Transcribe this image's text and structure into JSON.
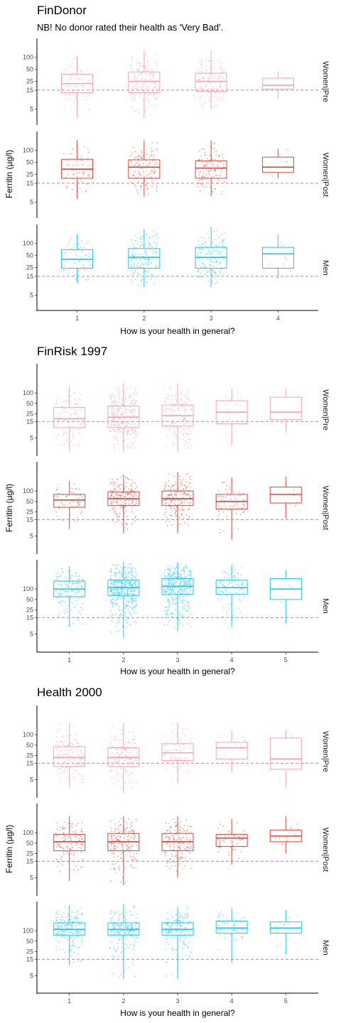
{
  "chart_data": [
    {
      "type": "box",
      "title": "FinDonor",
      "subtitle": "NB! No donor rated their health as 'Very Bad'.",
      "xlabel": "How is your health in general?",
      "ylabel": "Ferritin (µg/l)",
      "y_scale": "log",
      "y_ticks": [
        5,
        15,
        25,
        50,
        100
      ],
      "threshold": 15,
      "categories": [
        "1",
        "2",
        "3",
        "4"
      ],
      "panels": [
        {
          "label": "Women|Pre",
          "color": "#f7a0b8",
          "ylim": [
            2,
            300
          ],
          "boxes": [
            {
              "x": "1",
              "q1": 13,
              "median": 22,
              "q3": 38,
              "wlo": 3,
              "whi": 110,
              "n": 60
            },
            {
              "x": "2",
              "q1": 13,
              "median": 25,
              "q3": 43,
              "wlo": 3,
              "whi": 150,
              "n": 170
            },
            {
              "x": "3",
              "q1": 14,
              "median": 25,
              "q3": 40,
              "wlo": 5,
              "whi": 150,
              "n": 130
            },
            {
              "x": "4",
              "q1": 16,
              "median": 20,
              "q3": 30,
              "wlo": 9,
              "whi": 45,
              "n": 6
            }
          ]
        },
        {
          "label": "Women|Post",
          "color": "#d9453a",
          "ylim": [
            2,
            300
          ],
          "boxes": [
            {
              "x": "1",
              "q1": 20,
              "median": 34,
              "q3": 60,
              "wlo": 6,
              "whi": 180,
              "n": 55
            },
            {
              "x": "2",
              "q1": 20,
              "median": 38,
              "q3": 58,
              "wlo": 7,
              "whi": 180,
              "n": 120
            },
            {
              "x": "3",
              "q1": 20,
              "median": 36,
              "q3": 55,
              "wlo": 7,
              "whi": 180,
              "n": 110
            },
            {
              "x": "4",
              "q1": 28,
              "median": 38,
              "q3": 68,
              "wlo": 20,
              "whi": 110,
              "n": 6
            }
          ]
        },
        {
          "label": "Men",
          "color": "#22c3f0",
          "ylim": [
            2,
            300
          ],
          "boxes": [
            {
              "x": "1",
              "q1": 24,
              "median": 40,
              "q3": 70,
              "wlo": 10,
              "whi": 170,
              "n": 60
            },
            {
              "x": "2",
              "q1": 24,
              "median": 45,
              "q3": 75,
              "wlo": 8,
              "whi": 230,
              "n": 150
            },
            {
              "x": "3",
              "q1": 24,
              "median": 45,
              "q3": 80,
              "wlo": 8,
              "whi": 260,
              "n": 130
            },
            {
              "x": "4",
              "q1": 24,
              "median": 55,
              "q3": 80,
              "wlo": 13,
              "whi": 170,
              "n": 8
            }
          ]
        }
      ]
    },
    {
      "type": "box",
      "title": "FinRisk 1997",
      "xlabel": "How is your health in general?",
      "ylabel": "Ferritin (µg/l)",
      "y_scale": "log",
      "y_ticks": [
        5,
        15,
        25,
        50,
        100
      ],
      "threshold": 15,
      "categories": [
        "1",
        "2",
        "3",
        "4",
        "5"
      ],
      "panels": [
        {
          "label": "Women|Pre",
          "color": "#f7a0b8",
          "ylim": [
            1.5,
            700
          ],
          "boxes": [
            {
              "x": "1",
              "q1": 10,
              "median": 18,
              "q3": 38,
              "wlo": 2,
              "whi": 160,
              "n": 110
            },
            {
              "x": "2",
              "q1": 10,
              "median": 20,
              "q3": 42,
              "wlo": 2,
              "whi": 190,
              "n": 330
            },
            {
              "x": "3",
              "q1": 11,
              "median": 22,
              "q3": 45,
              "wlo": 2,
              "whi": 190,
              "n": 170
            },
            {
              "x": "4",
              "q1": 13,
              "median": 28,
              "q3": 60,
              "wlo": 3,
              "whi": 130,
              "n": 30
            },
            {
              "x": "5",
              "q1": 17,
              "median": 28,
              "q3": 75,
              "wlo": 7,
              "whi": 130,
              "n": 4
            }
          ]
        },
        {
          "label": "Women|Post",
          "color": "#d9453a",
          "ylim": [
            1.5,
            700
          ],
          "boxes": [
            {
              "x": "1",
              "q1": 34,
              "median": 55,
              "q3": 80,
              "wlo": 8,
              "whi": 200,
              "n": 50
            },
            {
              "x": "2",
              "q1": 38,
              "median": 60,
              "q3": 95,
              "wlo": 6,
              "whi": 300,
              "n": 190
            },
            {
              "x": "3",
              "q1": 38,
              "median": 60,
              "q3": 100,
              "wlo": 6,
              "whi": 350,
              "n": 200
            },
            {
              "x": "4",
              "q1": 30,
              "median": 50,
              "q3": 80,
              "wlo": 4,
              "whi": 250,
              "n": 60
            },
            {
              "x": "5",
              "q1": 45,
              "median": 80,
              "q3": 130,
              "wlo": 16,
              "whi": 260,
              "n": 6
            }
          ]
        },
        {
          "label": "Men",
          "color": "#22c3f0",
          "ylim": [
            1.5,
            700
          ],
          "boxes": [
            {
              "x": "1",
              "q1": 60,
              "median": 100,
              "q3": 170,
              "wlo": 8,
              "whi": 450,
              "n": 150
            },
            {
              "x": "2",
              "q1": 65,
              "median": 110,
              "q3": 180,
              "wlo": 4,
              "whi": 600,
              "n": 450
            },
            {
              "x": "3",
              "q1": 70,
              "median": 120,
              "q3": 200,
              "wlo": 6,
              "whi": 600,
              "n": 400
            },
            {
              "x": "4",
              "q1": 70,
              "median": 110,
              "q3": 180,
              "wlo": 8,
              "whi": 500,
              "n": 100
            },
            {
              "x": "5",
              "q1": 50,
              "median": 100,
              "q3": 200,
              "wlo": 10,
              "whi": 350,
              "n": 8
            }
          ]
        }
      ]
    },
    {
      "type": "box",
      "title": "Health 2000",
      "xlabel": "How is your health in general?",
      "ylabel": "Ferritin (µg/l)",
      "y_scale": "log",
      "y_ticks": [
        5,
        15,
        25,
        50,
        100
      ],
      "threshold": 15,
      "categories": [
        "1",
        "2",
        "3",
        "4",
        "5"
      ],
      "panels": [
        {
          "label": "Women|Pre",
          "color": "#f7a0b8",
          "ylim": [
            1.5,
            700
          ],
          "boxes": [
            {
              "x": "1",
              "q1": 12,
              "median": 22,
              "q3": 45,
              "wlo": 3,
              "whi": 220,
              "n": 160
            },
            {
              "x": "2",
              "q1": 12,
              "median": 22,
              "q3": 42,
              "wlo": 2,
              "whi": 220,
              "n": 170
            },
            {
              "x": "3",
              "q1": 18,
              "median": 30,
              "q3": 55,
              "wlo": 4,
              "whi": 220,
              "n": 80
            },
            {
              "x": "4",
              "q1": 20,
              "median": 42,
              "q3": 60,
              "wlo": 8,
              "whi": 130,
              "n": 20
            },
            {
              "x": "5",
              "q1": 10,
              "median": 20,
              "q3": 80,
              "wlo": 3,
              "whi": 140,
              "n": 5
            }
          ]
        },
        {
          "label": "Women|Post",
          "color": "#d9453a",
          "ylim": [
            1.5,
            700
          ],
          "boxes": [
            {
              "x": "1",
              "q1": 30,
              "median": 55,
              "q3": 90,
              "wlo": 4,
              "whi": 300,
              "n": 120
            },
            {
              "x": "2",
              "q1": 30,
              "median": 55,
              "q3": 95,
              "wlo": 3,
              "whi": 300,
              "n": 170
            },
            {
              "x": "3",
              "q1": 30,
              "median": 55,
              "q3": 95,
              "wlo": 5,
              "whi": 300,
              "n": 150
            },
            {
              "x": "4",
              "q1": 40,
              "median": 70,
              "q3": 90,
              "wlo": 12,
              "whi": 250,
              "n": 50
            },
            {
              "x": "5",
              "q1": 55,
              "median": 80,
              "q3": 120,
              "wlo": 25,
              "whi": 300,
              "n": 12
            }
          ]
        },
        {
          "label": "Men",
          "color": "#22c3f0",
          "ylim": [
            1.5,
            700
          ],
          "boxes": [
            {
              "x": "1",
              "q1": 75,
              "median": 110,
              "q3": 170,
              "wlo": 10,
              "whi": 550,
              "n": 210
            },
            {
              "x": "2",
              "q1": 75,
              "median": 110,
              "q3": 170,
              "wlo": 4,
              "whi": 600,
              "n": 210
            },
            {
              "x": "3",
              "q1": 75,
              "median": 110,
              "q3": 170,
              "wlo": 4,
              "whi": 500,
              "n": 170
            },
            {
              "x": "4",
              "q1": 85,
              "median": 120,
              "q3": 190,
              "wlo": 12,
              "whi": 450,
              "n": 60
            },
            {
              "x": "5",
              "q1": 85,
              "median": 120,
              "q3": 180,
              "wlo": 20,
              "whi": 400,
              "n": 14
            }
          ]
        }
      ]
    }
  ]
}
